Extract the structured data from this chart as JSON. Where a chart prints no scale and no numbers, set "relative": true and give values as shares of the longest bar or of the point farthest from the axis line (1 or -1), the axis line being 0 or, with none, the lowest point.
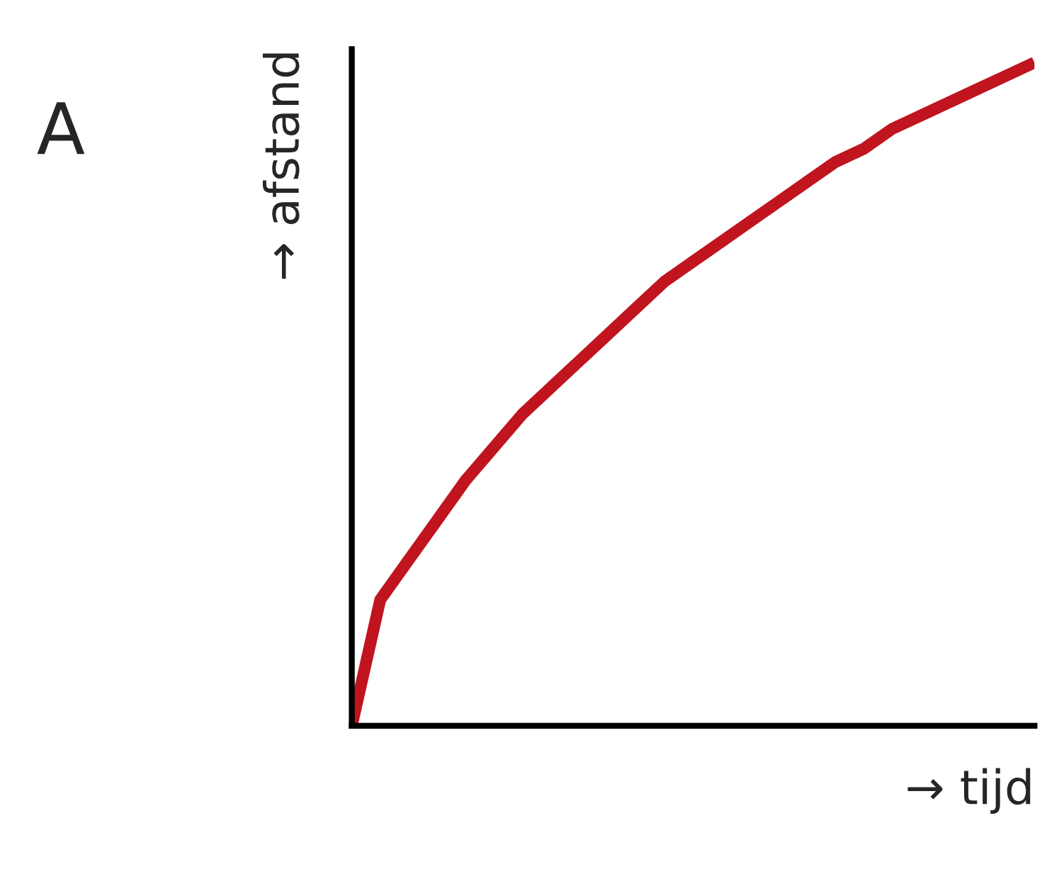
{
  "chart_data": {
    "type": "line",
    "relative": true,
    "xlabel": "→ tijd",
    "ylabel": "→ afstand",
    "annotations": [
      "A"
    ],
    "categories": [
      null,
      null,
      null,
      null,
      null,
      null,
      null,
      null,
      null,
      null,
      null,
      null,
      null,
      null,
      null,
      null,
      null,
      null,
      null,
      null,
      null,
      null,
      null,
      null,
      null
    ],
    "series": [
      {
        "color": "#c0141e",
        "values": [
          0,
          0.19,
          0.25,
          0.31,
          0.37,
          0.42,
          0.47,
          0.51,
          0.55,
          0.59,
          0.63,
          0.67,
          0.7,
          0.73,
          0.76,
          0.79,
          0.82,
          0.85,
          0.87,
          0.9,
          0.92,
          0.94,
          0.96,
          0.98,
          1
        ]
      }
    ],
    "grid": false,
    "legend": false
  }
}
